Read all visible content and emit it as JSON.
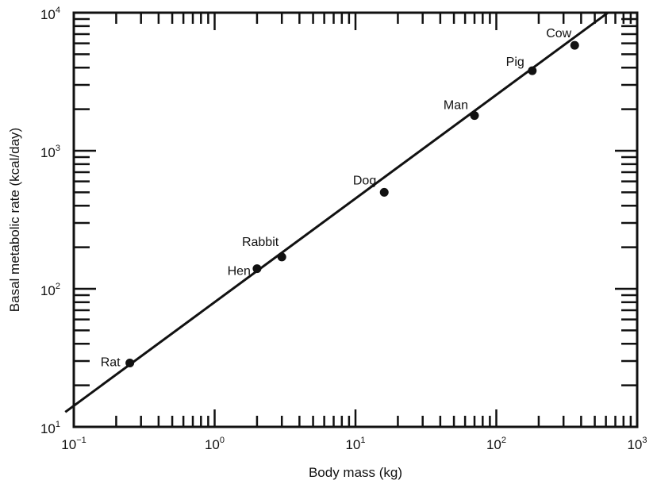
{
  "chart_data": {
    "type": "scatter",
    "xlabel": "Body mass (kg)",
    "ylabel": "Basal metabolic rate (kcal/day)",
    "x_scale": "log",
    "y_scale": "log",
    "xlim": [
      0.1,
      1000
    ],
    "ylim": [
      10,
      10000
    ],
    "x_tick_labels": [
      {
        "base": "10",
        "exp": "−1"
      },
      {
        "base": "10",
        "exp": "0"
      },
      {
        "base": "10",
        "exp": "1"
      },
      {
        "base": "10",
        "exp": "2"
      },
      {
        "base": "10",
        "exp": "3"
      }
    ],
    "y_tick_labels": [
      {
        "base": "10",
        "exp": "1"
      },
      {
        "base": "10",
        "exp": "2"
      },
      {
        "base": "10",
        "exp": "3"
      },
      {
        "base": "10",
        "exp": "4"
      }
    ],
    "points": [
      {
        "label": "Rat",
        "x": 0.25,
        "y": 29
      },
      {
        "label": "Hen",
        "x": 2.0,
        "y": 140
      },
      {
        "label": "Rabbit",
        "x": 3.0,
        "y": 170
      },
      {
        "label": "Dog",
        "x": 16,
        "y": 500
      },
      {
        "label": "Man",
        "x": 70,
        "y": 1800
      },
      {
        "label": "Pig",
        "x": 180,
        "y": 3800
      },
      {
        "label": "Cow",
        "x": 360,
        "y": 5800
      }
    ],
    "fit_line": {
      "x": [
        0.087,
        620
      ],
      "y": [
        12.8,
        10000
      ]
    },
    "grid": false,
    "legend": "none",
    "colors": {
      "ink": "#111111",
      "background": "#ffffff"
    }
  }
}
